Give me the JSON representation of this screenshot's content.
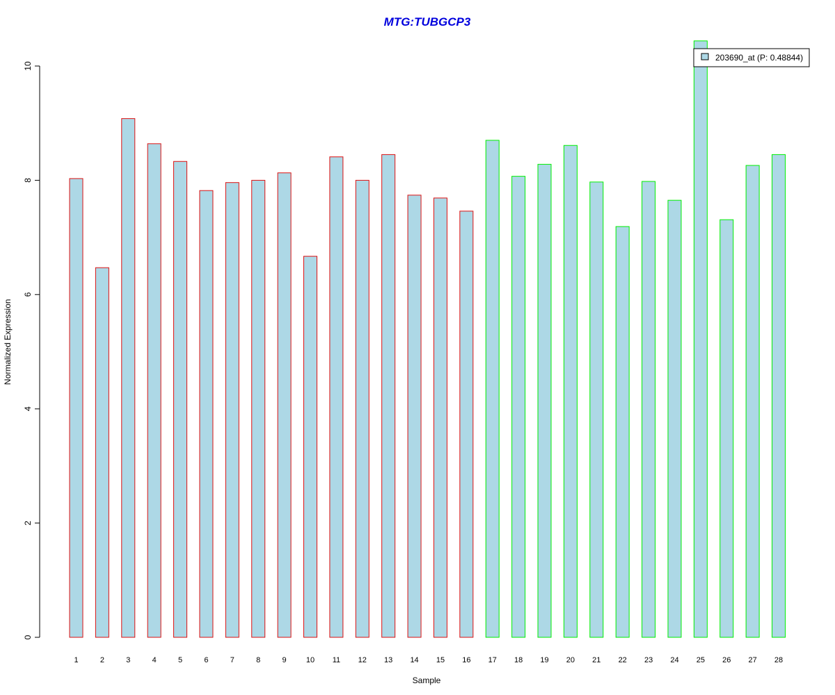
{
  "chart_data": {
    "type": "bar",
    "title": "MTG:TUBGCP3",
    "xlabel": "Sample",
    "ylabel": "Normalized Expression",
    "ylim": [
      0,
      10
    ],
    "yticks": [
      "0",
      "2",
      "4",
      "6",
      "8",
      "10"
    ],
    "categories": [
      "1",
      "2",
      "3",
      "4",
      "5",
      "6",
      "7",
      "8",
      "9",
      "10",
      "11",
      "12",
      "13",
      "14",
      "15",
      "16",
      "17",
      "18",
      "19",
      "20",
      "21",
      "22",
      "23",
      "24",
      "25",
      "26",
      "27",
      "28"
    ],
    "values": [
      8.03,
      6.47,
      9.08,
      8.64,
      8.33,
      7.82,
      7.96,
      8.0,
      8.13,
      6.67,
      8.41,
      8.0,
      8.45,
      7.74,
      7.69,
      7.46,
      8.7,
      8.07,
      8.28,
      8.61,
      7.97,
      7.19,
      7.98,
      7.65,
      10.44,
      7.31,
      8.26,
      8.45
    ],
    "groups": [
      "red",
      "red",
      "red",
      "red",
      "red",
      "red",
      "red",
      "red",
      "red",
      "red",
      "red",
      "red",
      "red",
      "red",
      "red",
      "red",
      "green",
      "green",
      "green",
      "green",
      "green",
      "green",
      "green",
      "green",
      "green",
      "green",
      "green",
      "green"
    ],
    "legend": {
      "label": "203690_at (P: 0.48844)",
      "placement": "top-right"
    },
    "colors": {
      "fill": "#add8e6",
      "red": "#dd1111",
      "green": "#00ee00",
      "title": "#0000dd"
    },
    "grid": false
  }
}
